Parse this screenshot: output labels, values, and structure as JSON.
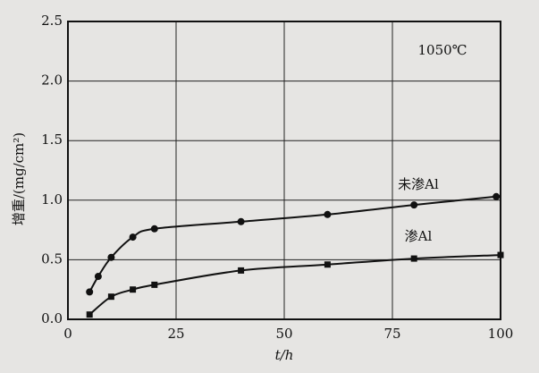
{
  "chart_data": {
    "type": "line",
    "annotation": "1050℃",
    "x_label": "t/h",
    "y_label": "增重/(mg/cm²)",
    "xlim": [
      0,
      100
    ],
    "xticks": [
      0,
      25,
      50,
      75,
      100
    ],
    "ylim": [
      0,
      2.5
    ],
    "yticks": [
      {
        "value": 0,
        "label": "0.0"
      },
      {
        "value": 0.5,
        "label": "0.5"
      },
      {
        "value": 1,
        "label": "1.0"
      },
      {
        "value": 1.5,
        "label": "1.5"
      },
      {
        "value": 2,
        "label": "2.0"
      },
      {
        "value": 2.5,
        "label": "2.5"
      }
    ],
    "grid": true,
    "series": [
      {
        "name": "未渗Al",
        "color": "#111111",
        "marker": "circle",
        "x": [
          5,
          7,
          10,
          15,
          20,
          40,
          60,
          80,
          99
        ],
        "values": [
          0.23,
          0.36,
          0.52,
          0.69,
          0.76,
          0.82,
          0.88,
          0.96,
          1.03
        ]
      },
      {
        "name": "渗Al",
        "color": "#111111",
        "marker": "square",
        "x": [
          5,
          10,
          15,
          20,
          40,
          60,
          80,
          100
        ],
        "values": [
          0.04,
          0.19,
          0.25,
          0.29,
          0.41,
          0.46,
          0.51,
          0.54
        ]
      }
    ]
  }
}
